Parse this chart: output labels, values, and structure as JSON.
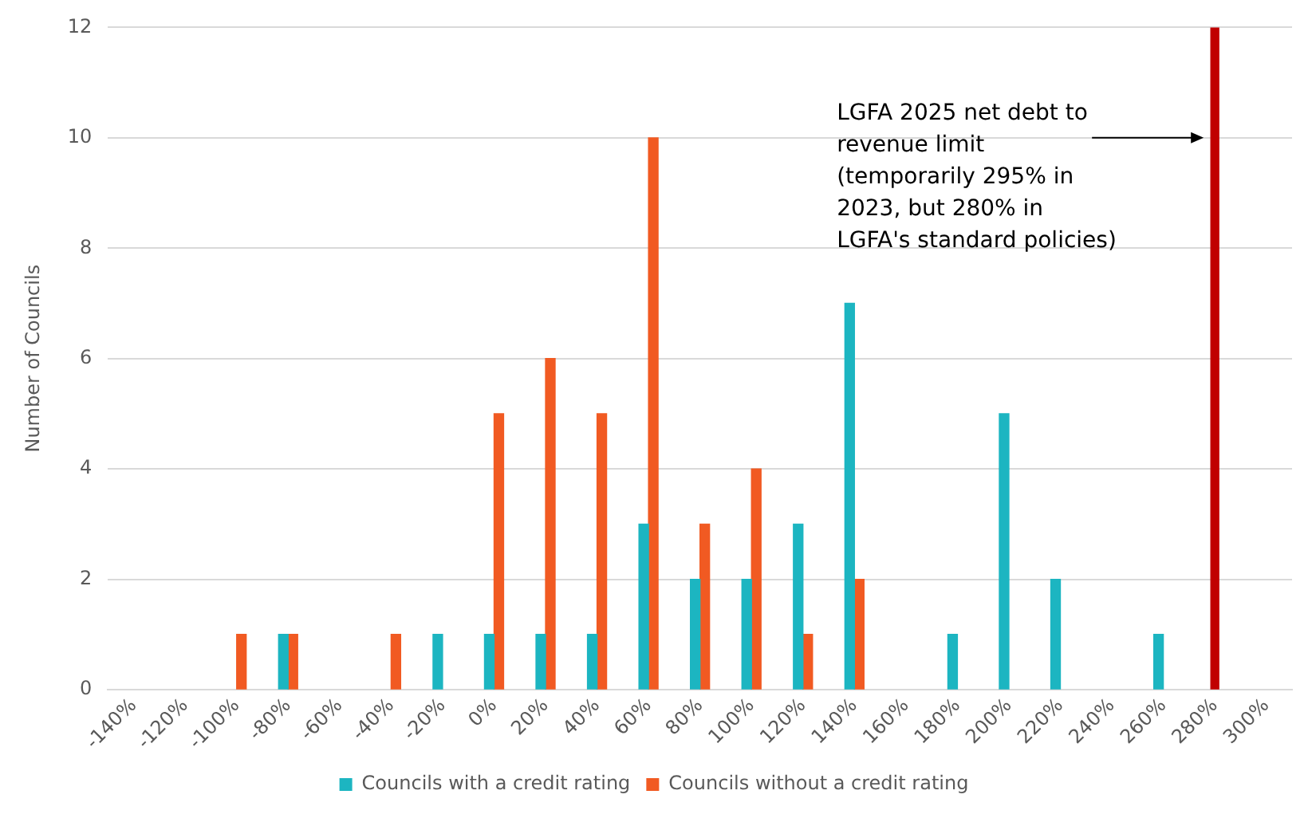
{
  "chart_data": {
    "type": "bar",
    "ylabel": "Number of Councils",
    "categories": [
      "-140%",
      "-120%",
      "-100%",
      "-80%",
      "-60%",
      "-40%",
      "-20%",
      "0%",
      "20%",
      "40%",
      "60%",
      "80%",
      "100%",
      "120%",
      "140%",
      "160%",
      "180%",
      "200%",
      "220%",
      "240%",
      "260%",
      "280%",
      "300%"
    ],
    "series": [
      {
        "name": "Councils with a credit rating",
        "color": "#1cb5c1",
        "values": [
          null,
          null,
          null,
          1,
          null,
          null,
          1,
          1,
          1,
          1,
          3,
          2,
          2,
          3,
          7,
          null,
          1,
          5,
          2,
          null,
          1,
          null,
          null
        ]
      },
      {
        "name": "Councils without a credit rating",
        "color": "#f15a22",
        "values": [
          null,
          null,
          1,
          1,
          null,
          1,
          null,
          5,
          6,
          5,
          10,
          3,
          4,
          1,
          2,
          null,
          null,
          null,
          null,
          null,
          null,
          null,
          null
        ]
      },
      {
        "color": "#c00000",
        "values": [
          null,
          null,
          null,
          null,
          null,
          null,
          null,
          null,
          null,
          null,
          null,
          null,
          null,
          null,
          null,
          null,
          null,
          null,
          null,
          null,
          null,
          12,
          null
        ]
      }
    ],
    "ylim": [
      0,
      12
    ],
    "yticks": [
      0,
      2,
      4,
      6,
      8,
      10,
      12
    ],
    "grid": "y",
    "legend": "bottom",
    "annotations": [
      {
        "text": "LGFA 2025 net debt to revenue limit (temporarily 295% in 2023, but 280% in LGFA's standard policies)",
        "x": "280%",
        "y": 10
      }
    ]
  }
}
